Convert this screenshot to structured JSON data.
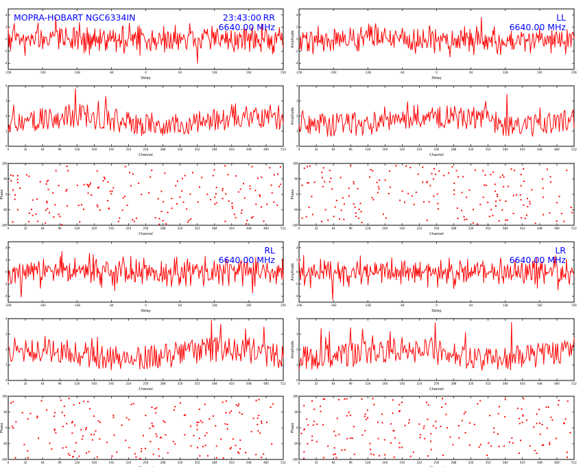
{
  "source": "MOPRA-HOBART NGC6334IN",
  "time": "23:43:00",
  "colors": {
    "trace": "#ff0000",
    "text": "#0000ff",
    "frame": "#000000"
  },
  "chart_data": [
    {
      "id": "rr-delay",
      "type": "line",
      "polarization": "RR",
      "frequency": "6640.00 MHz",
      "xlabel": "Delay",
      "ylabel": "",
      "xlim": [
        -256,
        256
      ],
      "ylim": [
        -5,
        5
      ],
      "xticks": [
        "-256",
        "-192",
        "-128",
        "-64",
        "0",
        "64",
        "128",
        "192",
        "256"
      ],
      "yticks": [
        "-4",
        "-2",
        "0",
        "2",
        "4"
      ],
      "points": 360,
      "seed": 11,
      "shape": "noise"
    },
    {
      "id": "rr-amp",
      "type": "line",
      "xlabel": "Channel",
      "ylabel": "",
      "xlim": [
        0,
        512
      ],
      "ylim": [
        0,
        4
      ],
      "xticks": [
        "0",
        "32",
        "64",
        "96",
        "128",
        "160",
        "192",
        "224",
        "256",
        "288",
        "320",
        "352",
        "384",
        "416",
        "448",
        "480",
        "512"
      ],
      "yticks": [
        "0",
        "1",
        "2",
        "3",
        "4"
      ],
      "points": 300,
      "seed": 12,
      "shape": "positive"
    },
    {
      "id": "rr-phase",
      "type": "scatter",
      "xlabel": "Channel",
      "ylabel": "Phase",
      "xlim": [
        0,
        512
      ],
      "ylim": [
        -180,
        180
      ],
      "xticks": [
        "0",
        "32",
        "64",
        "96",
        "128",
        "160",
        "192",
        "224",
        "256",
        "288",
        "320",
        "352",
        "384",
        "416",
        "448",
        "480",
        "512"
      ],
      "yticks": [
        "-180",
        "-90",
        "0",
        "90",
        "180"
      ],
      "points": 180,
      "seed": 13,
      "shape": "random"
    },
    {
      "id": "ll-delay",
      "type": "line",
      "polarization": "LL",
      "frequency": "6640.00 MHz",
      "xlabel": "Delay",
      "ylabel": "Amplitude",
      "xlim": [
        -256,
        256
      ],
      "ylim": [
        -5,
        5
      ],
      "xticks": [
        "-256",
        "-192",
        "-128",
        "-64",
        "0",
        "64",
        "128",
        "192",
        "256"
      ],
      "yticks": [
        "-4",
        "-2",
        "0",
        "2",
        "4"
      ],
      "points": 360,
      "seed": 21,
      "shape": "noise"
    },
    {
      "id": "ll-amp",
      "type": "line",
      "xlabel": "Channel",
      "ylabel": "Amplitude",
      "xlim": [
        0,
        512
      ],
      "ylim": [
        0,
        4
      ],
      "xticks": [
        "0",
        "32",
        "64",
        "96",
        "128",
        "160",
        "192",
        "224",
        "256",
        "288",
        "320",
        "352",
        "384",
        "416",
        "448",
        "480",
        "512"
      ],
      "yticks": [
        "0",
        "1",
        "2",
        "3",
        "4"
      ],
      "points": 300,
      "seed": 22,
      "shape": "positive"
    },
    {
      "id": "ll-phase",
      "type": "scatter",
      "xlabel": "Channel",
      "ylabel": "Phase",
      "xlim": [
        0,
        512
      ],
      "ylim": [
        -180,
        180
      ],
      "xticks": [
        "0",
        "32",
        "64",
        "96",
        "128",
        "160",
        "192",
        "224",
        "256",
        "288",
        "320",
        "352",
        "384",
        "416",
        "448",
        "480",
        "512"
      ],
      "yticks": [
        "-180",
        "-90",
        "0",
        "90",
        "180"
      ],
      "points": 180,
      "seed": 23,
      "shape": "random"
    },
    {
      "id": "rl-delay",
      "type": "line",
      "polarization": "RL",
      "frequency": "6640.00 MHz",
      "xlabel": "Delay",
      "ylabel": "",
      "xlim": [
        -256,
        256
      ],
      "ylim": [
        -5,
        5
      ],
      "xticks": [
        "-256",
        "-192",
        "-128",
        "-64",
        "0",
        "64",
        "128",
        "192",
        "256"
      ],
      "yticks": [
        "-4",
        "-2",
        "0",
        "2",
        "4"
      ],
      "points": 360,
      "seed": 31,
      "shape": "noise"
    },
    {
      "id": "rl-amp",
      "type": "line",
      "xlabel": "Channel",
      "ylabel": "",
      "xlim": [
        0,
        512
      ],
      "ylim": [
        0,
        4
      ],
      "xticks": [
        "0",
        "32",
        "64",
        "96",
        "128",
        "160",
        "192",
        "224",
        "256",
        "288",
        "320",
        "352",
        "384",
        "416",
        "448",
        "480",
        "512"
      ],
      "yticks": [
        "0",
        "1",
        "2",
        "3",
        "4"
      ],
      "points": 300,
      "seed": 32,
      "shape": "positive"
    },
    {
      "id": "rl-phase",
      "type": "scatter",
      "xlabel": "Channel",
      "ylabel": "Phase",
      "xlim": [
        0,
        512
      ],
      "ylim": [
        -180,
        180
      ],
      "xticks": [
        "0",
        "32",
        "64",
        "96",
        "128",
        "160",
        "192",
        "224",
        "256",
        "288",
        "320",
        "352",
        "384",
        "416",
        "448",
        "480",
        "512"
      ],
      "yticks": [
        "-180",
        "-90",
        "0",
        "90",
        "180"
      ],
      "points": 180,
      "seed": 33,
      "shape": "random"
    },
    {
      "id": "lr-delay",
      "type": "line",
      "polarization": "LR",
      "frequency": "6640.00 MHz",
      "xlabel": "Delay",
      "ylabel": "Amplitude",
      "xlim": [
        -256,
        256
      ],
      "ylim": [
        -5,
        5
      ],
      "xticks": [
        "-256",
        "-192",
        "-128",
        "-64",
        "0",
        "64",
        "128",
        "192",
        "256"
      ],
      "yticks": [
        "-4",
        "-2",
        "0",
        "2",
        "4"
      ],
      "points": 360,
      "seed": 41,
      "shape": "noise"
    },
    {
      "id": "lr-amp",
      "type": "line",
      "xlabel": "Channel",
      "ylabel": "Amplitude",
      "xlim": [
        0,
        512
      ],
      "ylim": [
        0,
        4
      ],
      "xticks": [
        "0",
        "32",
        "64",
        "96",
        "128",
        "160",
        "192",
        "224",
        "256",
        "288",
        "320",
        "352",
        "384",
        "416",
        "448",
        "480",
        "512"
      ],
      "yticks": [
        "0",
        "1",
        "2",
        "3",
        "4"
      ],
      "points": 300,
      "seed": 42,
      "shape": "positive"
    },
    {
      "id": "lr-phase",
      "type": "scatter",
      "xlabel": "Channel",
      "ylabel": "Phase",
      "xlim": [
        0,
        512
      ],
      "ylim": [
        -180,
        180
      ],
      "xticks": [
        "0",
        "32",
        "64",
        "96",
        "128",
        "160",
        "192",
        "224",
        "256",
        "288",
        "320",
        "352",
        "384",
        "416",
        "448",
        "480",
        "512"
      ],
      "yticks": [
        "-180",
        "-90",
        "0",
        "90",
        "180"
      ],
      "points": 180,
      "seed": 43,
      "shape": "random"
    }
  ]
}
